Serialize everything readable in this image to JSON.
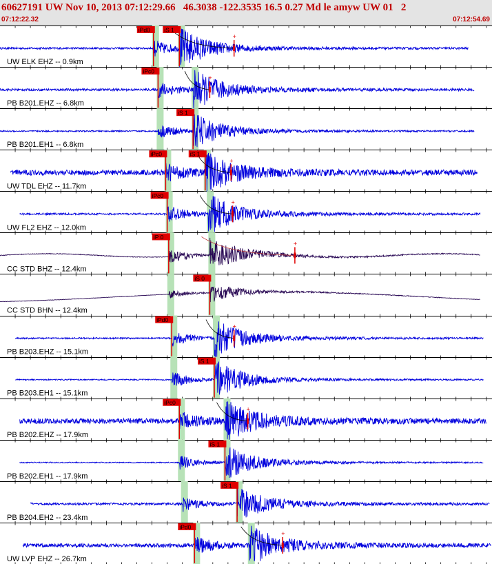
{
  "header": {
    "title": "60627191 UW Nov 10, 2013 07:12:29.66   46.3038 -122.3535 16.5 0.27 Md le amyw UW 01   2",
    "start_time": "07:12:22.32",
    "end_time": "07:12:54.69"
  },
  "colors": {
    "header_bg": "#e4e4e4",
    "header_text": "#c00000",
    "trace_blue": "#0000dd",
    "trace_dark": "#2a0a55",
    "pick_red": "#e00000",
    "p_window": "#b7e2b7",
    "coda_line": "#000000"
  },
  "chart_data": {
    "type": "seismogram",
    "time_range": [
      "07:12:22.32",
      "07:12:54.69"
    ],
    "duration_s": 32.37,
    "traces": [
      {
        "label": "UW ELK EHZ -- 0.9km",
        "color": "blue",
        "trace_start": 0.0,
        "trace_end": 30.8,
        "p_time": 10.1,
        "s_time": 11.8,
        "p_label": "iPd0",
        "s_label": "iS 1",
        "coda_end": 15.4,
        "amp": 1.0,
        "noise": 0.05,
        "long_period": false
      },
      {
        "label": "PB B201.EHZ -- 6.8km",
        "color": "blue",
        "trace_start": 0.0,
        "trace_end": 31.2,
        "p_time": 10.4,
        "s_time": 12.7,
        "p_label": "iPc0",
        "s_label": "",
        "coda_end": 13.8,
        "amp": 1.0,
        "noise": 0.06,
        "long_period": false
      },
      {
        "label": "PB B201.EH1 -- 6.8km",
        "color": "blue",
        "trace_start": 0.0,
        "trace_end": 31.2,
        "p_time": 10.4,
        "s_time": 12.7,
        "p_label": "",
        "s_label": "iS 1",
        "coda_end": 0,
        "amp": 0.9,
        "noise": 0.04,
        "long_period": false
      },
      {
        "label": "UW TDL EHZ -- 11.7km",
        "color": "blue",
        "trace_start": 0.7,
        "trace_end": 31.4,
        "p_time": 10.9,
        "s_time": 13.5,
        "p_label": "iPc0",
        "s_label": "iS 1",
        "coda_end": 15.2,
        "amp": 1.0,
        "noise": 0.14,
        "long_period": false
      },
      {
        "label": "UW FL2 EHZ -- 12.0km",
        "color": "blue",
        "trace_start": 1.3,
        "trace_end": 31.6,
        "p_time": 11.0,
        "s_time": 13.7,
        "p_label": "iPc0",
        "s_label": "",
        "coda_end": 15.3,
        "amp": 1.0,
        "noise": 0.05,
        "long_period": false
      },
      {
        "label": "CC STD BHZ -- 12.4km",
        "color": "dark",
        "trace_start": 0.0,
        "trace_end": 31.6,
        "p_time": 11.1,
        "s_time": 13.8,
        "p_label": "iP 0",
        "s_label": "",
        "coda_end": 19.4,
        "amp": 0.9,
        "noise": 0.02,
        "long_period": true
      },
      {
        "label": "CC STD BHN -- 12.4km",
        "color": "dark",
        "trace_start": 0.0,
        "trace_end": 31.6,
        "p_time": 11.1,
        "s_time": 13.8,
        "p_label": "",
        "s_label": "iS 0",
        "coda_end": 0,
        "amp": 0.5,
        "noise": 0.02,
        "long_period": true
      },
      {
        "label": "PB B203.EHZ -- 15.1km",
        "color": "blue",
        "trace_start": 1.0,
        "trace_end": 31.8,
        "p_time": 11.3,
        "s_time": 14.1,
        "p_label": "iPd0",
        "s_label": "",
        "coda_end": 15.4,
        "amp": 1.0,
        "noise": 0.04,
        "long_period": false
      },
      {
        "label": "PB B203.EH1 -- 15.1km",
        "color": "blue",
        "trace_start": 1.0,
        "trace_end": 31.8,
        "p_time": 11.3,
        "s_time": 14.1,
        "p_label": "",
        "s_label": "iS 1",
        "coda_end": 0,
        "amp": 1.0,
        "noise": 0.03,
        "long_period": false
      },
      {
        "label": "PB B202.EHZ -- 17.9km",
        "color": "blue",
        "trace_start": 1.3,
        "trace_end": 32.0,
        "p_time": 11.8,
        "s_time": 14.8,
        "p_label": "iPc0",
        "s_label": "",
        "coda_end": 16.3,
        "amp": 1.0,
        "noise": 0.14,
        "long_period": false
      },
      {
        "label": "PB B202.EH1 -- 17.9km",
        "color": "blue",
        "trace_start": 1.3,
        "trace_end": 31.8,
        "p_time": 11.8,
        "s_time": 14.8,
        "p_label": "",
        "s_label": "iS 1",
        "coda_end": 0,
        "amp": 0.9,
        "noise": 0.03,
        "long_period": false
      },
      {
        "label": "PB B204.EH2 -- 23.4km",
        "color": "blue",
        "trace_start": 2.0,
        "trace_end": 32.2,
        "p_time": 12.0,
        "s_time": 15.6,
        "p_label": "",
        "s_label": "iS 1",
        "coda_end": 0,
        "amp": 0.85,
        "noise": 0.07,
        "long_period": false
      },
      {
        "label": "UW LVP EHZ -- 26.7km",
        "color": "blue",
        "trace_start": 1.5,
        "trace_end": 32.3,
        "p_time": 12.8,
        "s_time": 16.4,
        "p_label": "iPd0",
        "s_label": "",
        "coda_end": 18.6,
        "amp": 1.0,
        "noise": 0.1,
        "long_period": false
      }
    ]
  }
}
